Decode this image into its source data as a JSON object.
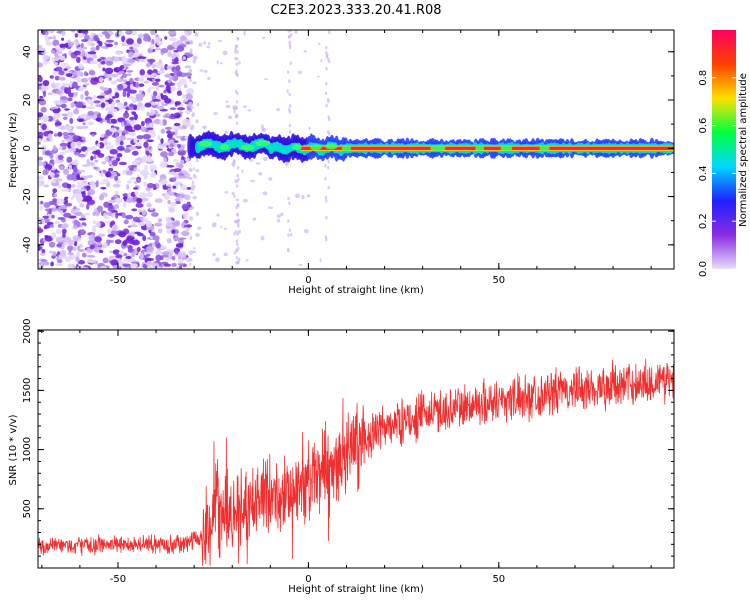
{
  "title": "C2E3.2023.333.20.41.R08",
  "chart_data": [
    {
      "type": "heatmap",
      "xlabel": "Height of straight line (km)",
      "ylabel": "Frequency (Hz)",
      "xlim": [
        -71,
        96
      ],
      "ylim": [
        -50,
        49
      ],
      "xticks": [
        -50,
        0,
        50
      ],
      "yticks": [
        -40,
        -20,
        0,
        20,
        40
      ],
      "colorbar": {
        "label": "Normalized spectral amplitude",
        "range": [
          0,
          1
        ],
        "ticks": [
          "0.0",
          "0.2",
          "0.4",
          "0.6",
          "0.8"
        ],
        "colormap": [
          "#e8dcfa",
          "#8a2be2",
          "#2020ff",
          "#00d8ff",
          "#00ff40",
          "#ffe000",
          "#ff4000",
          "#ff0060"
        ]
      },
      "features": {
        "noise_region_x": [
          -71,
          -31
        ],
        "band_start_x": -31,
        "band_center_hz": 0
      }
    },
    {
      "type": "line",
      "xlabel": "Height of straight line (km)",
      "ylabel": "SNR (10 * v/v)",
      "xlim": [
        -71,
        96
      ],
      "ylim": [
        0,
        2010
      ],
      "xticks": [
        -50,
        0,
        50
      ],
      "yticks": [
        500,
        1000,
        1500,
        2000
      ],
      "color": "#f03030",
      "trend": [
        {
          "x": -71,
          "y": 180
        },
        {
          "x": -50,
          "y": 200
        },
        {
          "x": -33,
          "y": 200
        },
        {
          "x": -28,
          "y": 260
        },
        {
          "x": -25,
          "y": 520
        },
        {
          "x": -20,
          "y": 450
        },
        {
          "x": -15,
          "y": 560
        },
        {
          "x": -10,
          "y": 640
        },
        {
          "x": -5,
          "y": 580
        },
        {
          "x": 0,
          "y": 700
        },
        {
          "x": 5,
          "y": 820
        },
        {
          "x": 10,
          "y": 950
        },
        {
          "x": 15,
          "y": 1080
        },
        {
          "x": 20,
          "y": 1190
        },
        {
          "x": 30,
          "y": 1290
        },
        {
          "x": 40,
          "y": 1360
        },
        {
          "x": 50,
          "y": 1420
        },
        {
          "x": 60,
          "y": 1460
        },
        {
          "x": 70,
          "y": 1500
        },
        {
          "x": 80,
          "y": 1540
        },
        {
          "x": 90,
          "y": 1570
        },
        {
          "x": 96,
          "y": 1600
        }
      ]
    }
  ]
}
